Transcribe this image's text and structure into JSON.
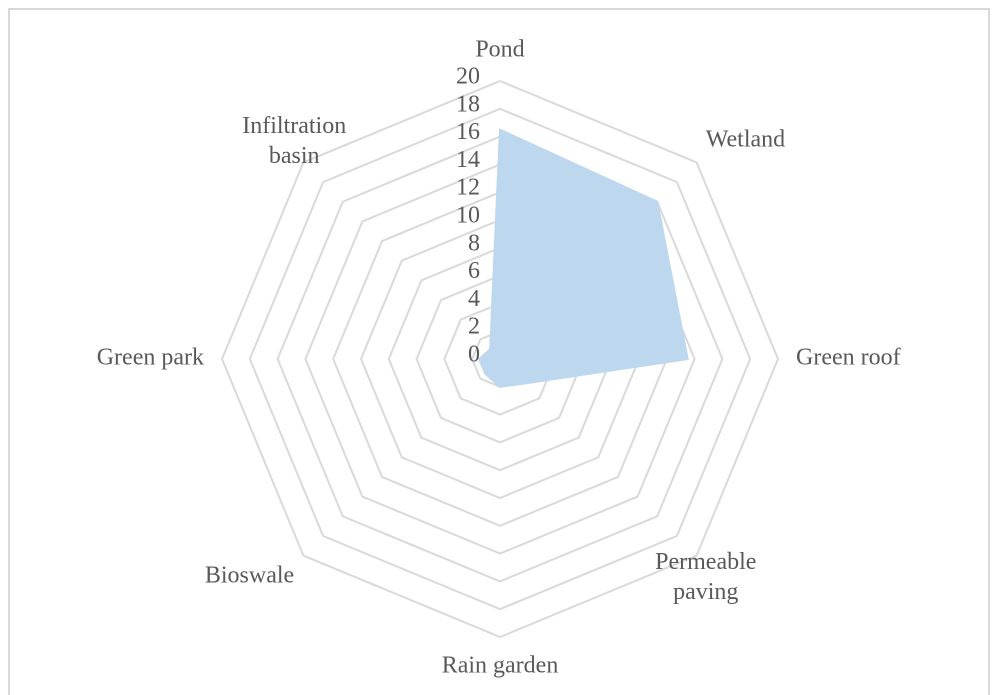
{
  "chart_data": {
    "type": "radar",
    "categories": [
      "Pond",
      "Wetland",
      "Green roof",
      "Permeable paving",
      "Rain garden",
      "Bioswale",
      "Green park",
      "Infiltration basin"
    ],
    "values": [
      16.5,
      16,
      13.5,
      2.5,
      2,
      1.5,
      1.5,
      1
    ],
    "color": "#bdd7ee",
    "ylim": [
      0,
      20
    ],
    "yticks": [
      0,
      2,
      4,
      6,
      8,
      10,
      12,
      14,
      16,
      18,
      20
    ],
    "grid": true
  }
}
